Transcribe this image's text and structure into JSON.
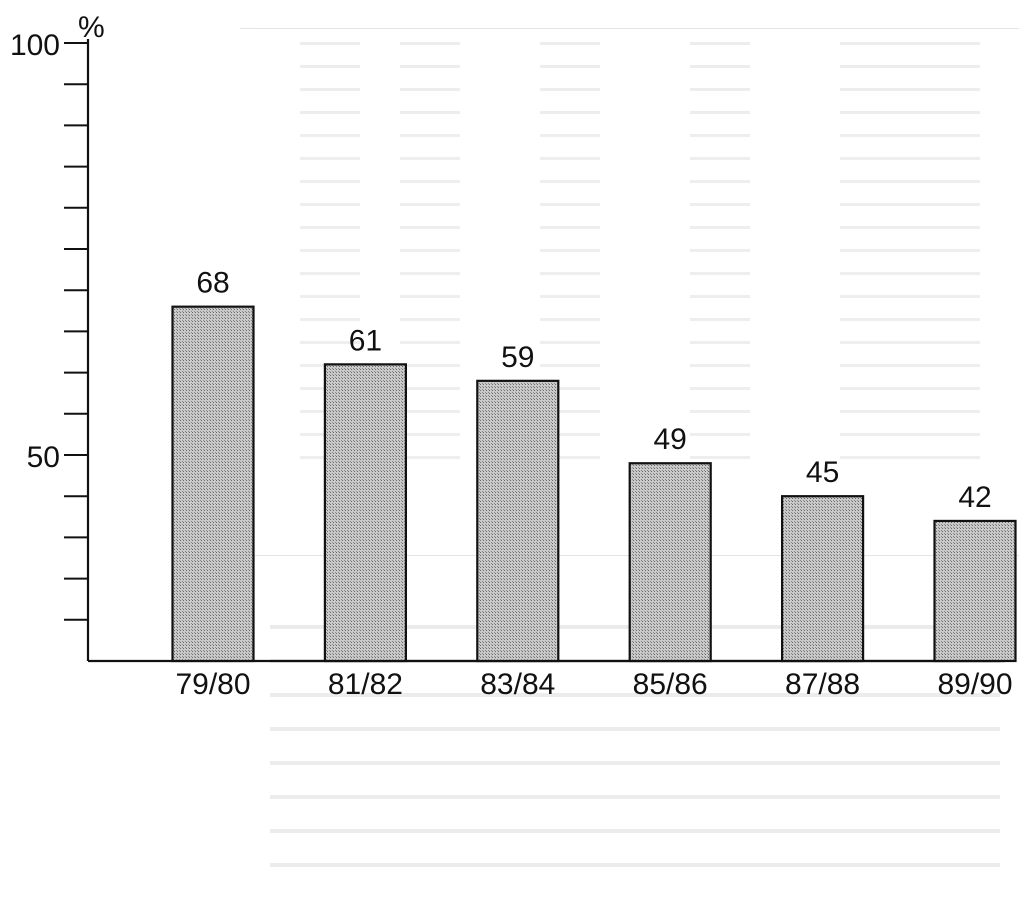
{
  "chart_data": {
    "type": "bar",
    "title": "",
    "xlabel": "",
    "ylabel": "%",
    "categories": [
      "79/80",
      "81/82",
      "83/84",
      "85/86",
      "87/88",
      "89/90"
    ],
    "values": [
      68,
      61,
      59,
      49,
      45,
      42
    ],
    "data_labels": [
      "68",
      "61",
      "59",
      "49",
      "45",
      "42"
    ],
    "ylim": [
      25,
      100
    ],
    "y_tick_labels": [
      {
        "value": 50,
        "label": "50"
      },
      {
        "value": 100,
        "label": "100"
      }
    ],
    "y_minor_ticks": [
      30,
      35,
      40,
      45,
      55,
      60,
      65,
      70,
      75,
      80,
      85,
      90,
      95
    ],
    "grid": false,
    "legend": "none",
    "bar_fill": "#b9b9b9",
    "bar_stroke": "#111111"
  }
}
